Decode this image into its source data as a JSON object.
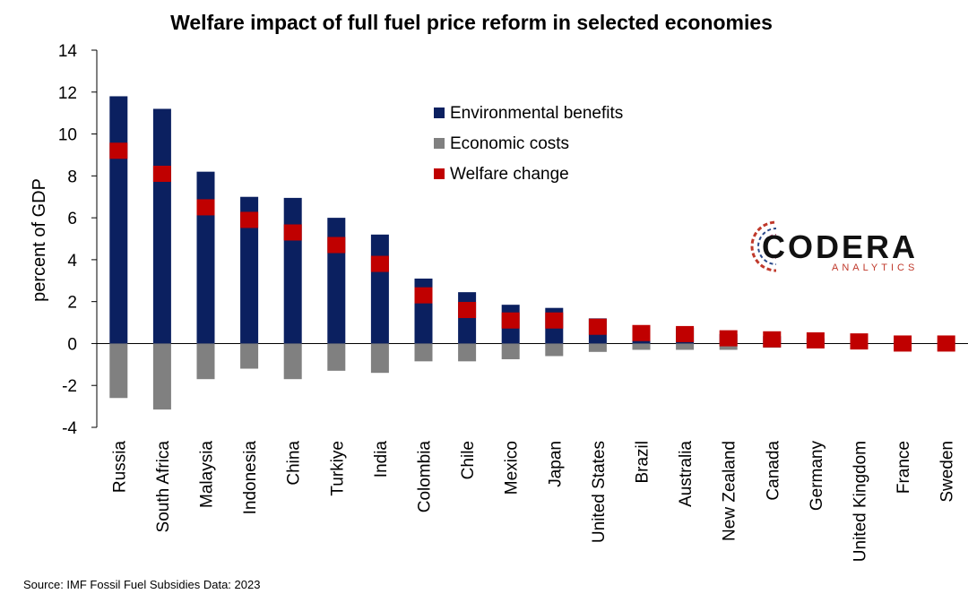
{
  "chart_data": {
    "type": "bar",
    "title": "Welfare impact of full fuel price reform in selected economies",
    "ylabel": "percent of GDP",
    "xlabel": "",
    "ylim": [
      -4,
      14
    ],
    "yticks": [
      -4,
      -2,
      0,
      2,
      4,
      6,
      8,
      10,
      12,
      14
    ],
    "grid": false,
    "legend_position": "top-right",
    "categories": [
      "Russia",
      "South Africa",
      "Malaysia",
      "Indonesia",
      "China",
      "Turkiye",
      "India",
      "Colombia",
      "Chile",
      "Mexico",
      "Japan",
      "United States",
      "Brazil",
      "Australia",
      "New Zealand",
      "Canada",
      "Germany",
      "United Kingdom",
      "France",
      "Sweden"
    ],
    "series": [
      {
        "name": "Environmental benefits",
        "kind": "bar",
        "color": "#0b2060",
        "values": [
          11.8,
          11.2,
          8.2,
          7.0,
          6.95,
          6.0,
          5.2,
          3.1,
          2.45,
          1.85,
          1.7,
          1.2,
          0.8,
          0.75,
          0.45,
          0.35,
          0.25,
          0.2,
          0.1,
          0.05
        ]
      },
      {
        "name": "Economic costs",
        "kind": "bar",
        "color": "#808080",
        "values": [
          -2.6,
          -3.15,
          -1.7,
          -1.2,
          -1.7,
          -1.3,
          -1.4,
          -0.85,
          -0.85,
          -0.75,
          -0.6,
          -0.4,
          -0.3,
          -0.3,
          -0.3,
          -0.2,
          -0.1,
          -0.1,
          -0.05,
          -0.05
        ]
      },
      {
        "name": "Welfare change",
        "kind": "marker",
        "color": "#c00000",
        "values": [
          9.2,
          8.1,
          6.5,
          5.9,
          5.3,
          4.7,
          3.8,
          2.3,
          1.6,
          1.1,
          1.1,
          0.8,
          0.5,
          0.45,
          0.25,
          0.2,
          0.15,
          0.1,
          0.0,
          0.0
        ]
      }
    ]
  },
  "source_text": "Source: IMF Fossil Fuel Subsidies Data: 2023",
  "logo": {
    "name": "CODERA",
    "sub": "ANALYTICS"
  }
}
